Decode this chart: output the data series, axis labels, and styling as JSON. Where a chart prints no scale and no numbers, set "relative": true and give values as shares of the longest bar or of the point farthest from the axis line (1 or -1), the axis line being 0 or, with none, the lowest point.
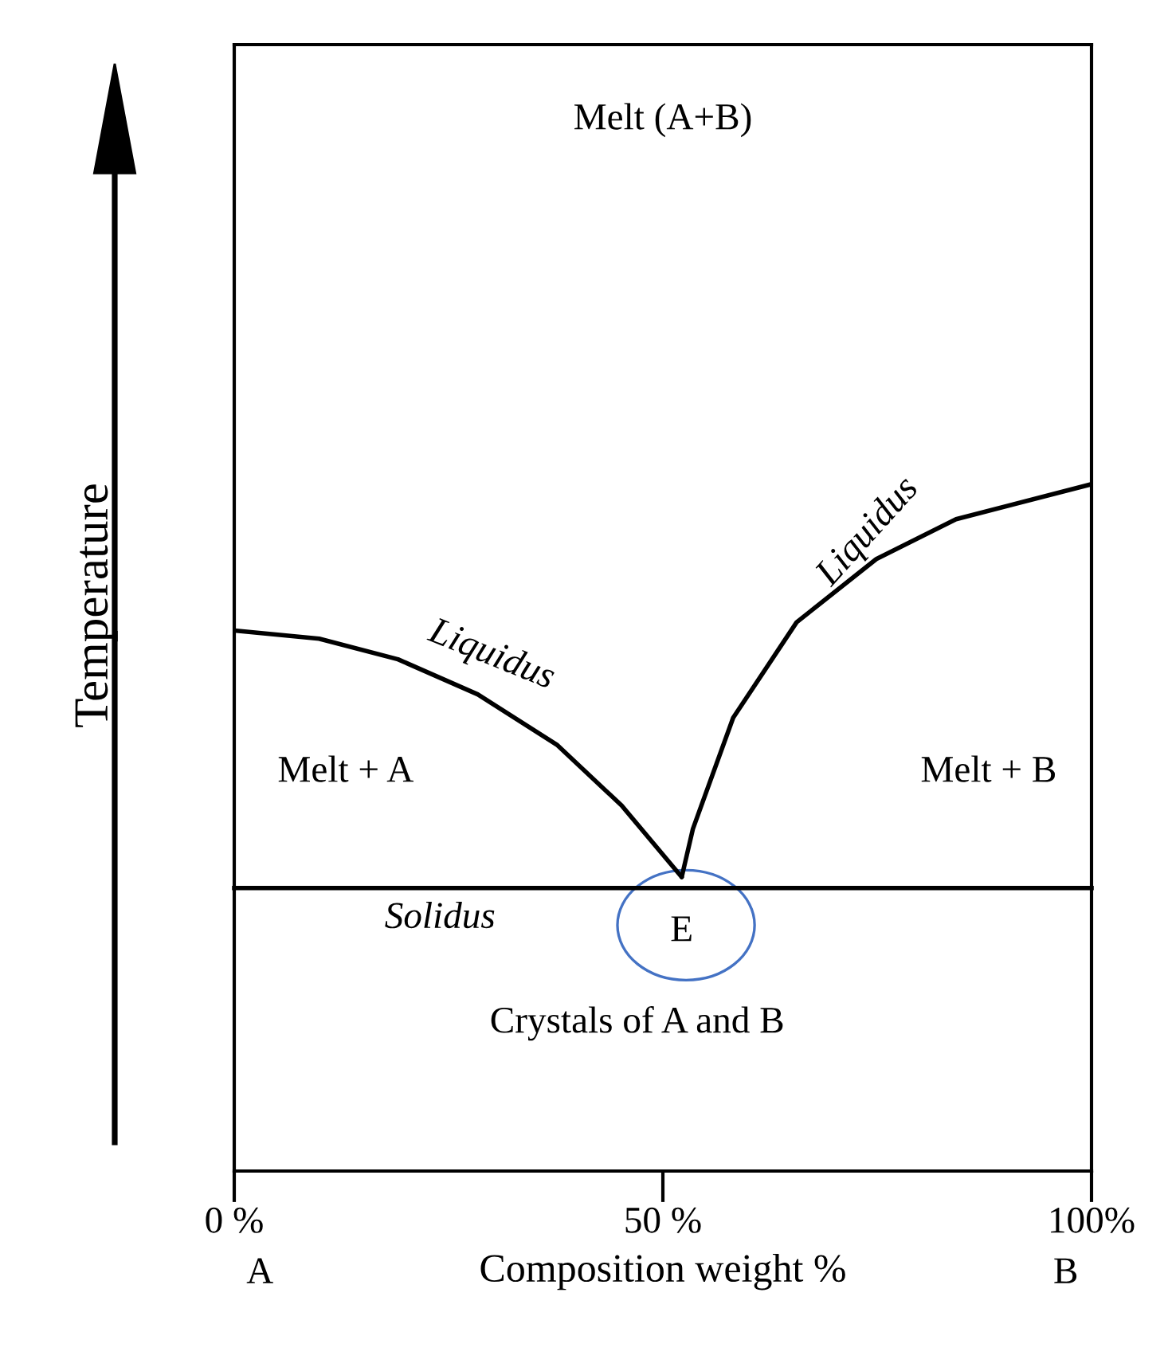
{
  "chart_data": {
    "type": "line",
    "relative": true,
    "xlabel": "Composition weight %",
    "ylabel": "Temperature",
    "xlim": [
      0,
      100
    ],
    "xticks": [
      {
        "value": 0,
        "label": "0 %"
      },
      {
        "value": 50,
        "label": "50 %"
      },
      {
        "value": 100,
        "label": "100%"
      }
    ],
    "grid": false,
    "legend": false,
    "marker": "none",
    "line_style": "solid",
    "series": [
      {
        "color": "#000000",
        "x": [
          0,
          9.9,
          19.1,
          28.4,
          37.7,
          45.2,
          52.2
        ],
        "values": [
          0.787,
          0.775,
          0.745,
          0.694,
          0.62,
          0.532,
          0.428
        ]
      },
      {
        "color": "#000000",
        "x": [
          52.2,
          53.5,
          58.2,
          65.6,
          74.9,
          84.2,
          100
        ],
        "values": [
          0.428,
          0.498,
          0.66,
          0.799,
          0.891,
          0.949,
          1
        ]
      }
    ],
    "ref_lines": [
      {
        "axis": "y",
        "value": 0.412,
        "label": "Solidus",
        "color": "#000000"
      }
    ],
    "annotations": [
      "Liquidus",
      "Liquidus",
      "Melt (A+B)",
      "Melt + A",
      "Melt + B",
      {
        "text": "E",
        "x": 52.2,
        "y": 0.428
      },
      "Crystals of A and B",
      "A",
      "B"
    ]
  }
}
